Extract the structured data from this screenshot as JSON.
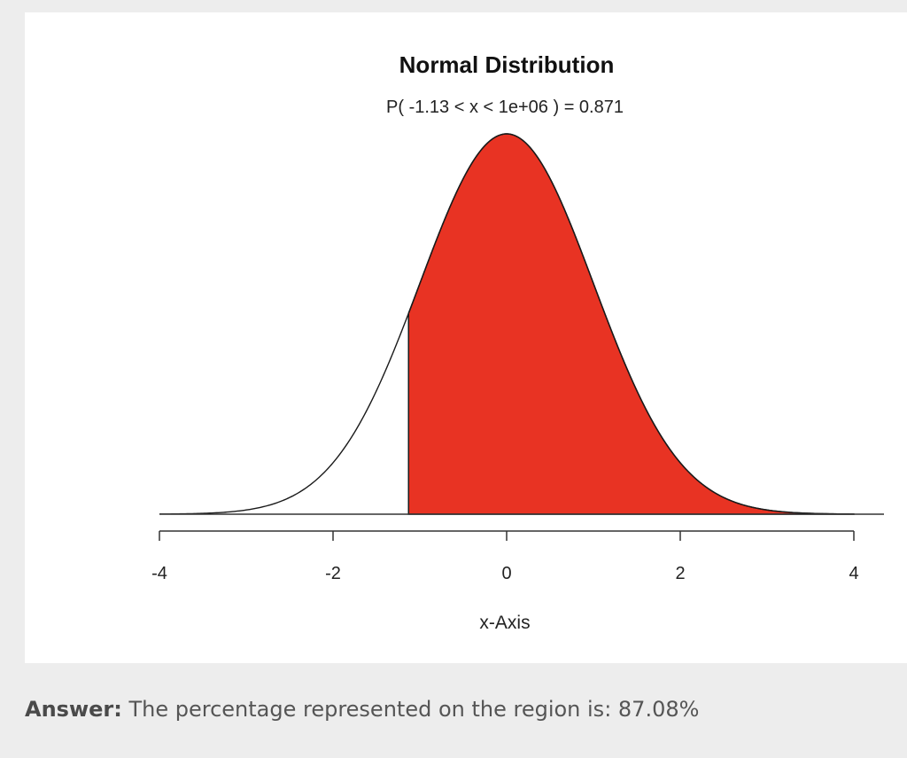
{
  "chart_data": {
    "type": "area",
    "title": "Normal Distribution",
    "subtitle": "P( -1.13 < x < 1e+06 ) = 0.871",
    "xlabel": "x-Axis",
    "ylabel": "",
    "xlim": [
      -4,
      4
    ],
    "x_ticks": [
      -4,
      -2,
      0,
      2,
      4
    ],
    "x_tick_labels": [
      "-4",
      "-2",
      "0",
      "2",
      "4"
    ],
    "mean": 0,
    "sd": 1,
    "shaded_from": -1.13,
    "shaded_to": 1000000,
    "probability": 0.871,
    "fill_color": "#e83323",
    "line_color": "#1a1a1a",
    "grid": false
  },
  "answer": {
    "label": "Answer:",
    "text": " The percentage represented on the region is: 87.08%"
  }
}
